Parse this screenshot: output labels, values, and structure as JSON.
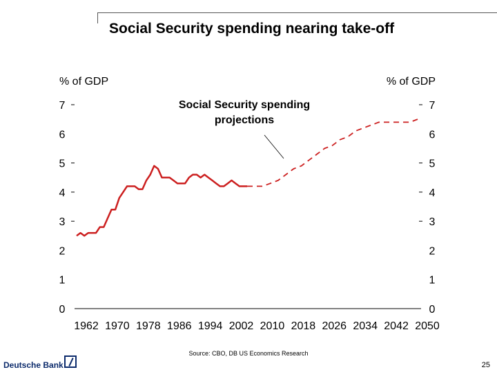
{
  "slide": {
    "title": "Social Security spending nearing take-off",
    "source": "Source: CBO, DB US Economics Research",
    "logo_text": "Deutsche Bank",
    "page_number": "25"
  },
  "chart_data": {
    "type": "line",
    "title": "",
    "ylabel_left": "% of GDP",
    "ylabel_right": "% of GDP",
    "ylim": [
      0,
      7
    ],
    "xlim": [
      1962,
      2050
    ],
    "y_ticks": [
      "0",
      "1",
      "2",
      "3",
      "4",
      "5",
      "6",
      "7"
    ],
    "x_ticks": [
      "1962",
      "1970",
      "1978",
      "1986",
      "1994",
      "2002",
      "2010",
      "2018",
      "2026",
      "2034",
      "2042",
      "2050"
    ],
    "grid": false,
    "color": "#cc1f1f",
    "annotation": "Social Security spending projections",
    "series": [
      {
        "style": "solid",
        "x": [
          1962,
          1963,
          1964,
          1965,
          1966,
          1967,
          1968,
          1969,
          1970,
          1971,
          1972,
          1973,
          1974,
          1975,
          1976,
          1977,
          1978,
          1979,
          1980,
          1981,
          1982,
          1983,
          1984,
          1985,
          1986,
          1987,
          1988,
          1989,
          1990,
          1991,
          1992,
          1993,
          1994,
          1995,
          1996,
          1997,
          1998,
          1999,
          2000,
          2001,
          2002,
          2003,
          2004,
          2005,
          2006
        ],
        "y": [
          2.5,
          2.6,
          2.5,
          2.6,
          2.6,
          2.6,
          2.8,
          2.8,
          3.1,
          3.4,
          3.4,
          3.8,
          4.0,
          4.2,
          4.2,
          4.2,
          4.1,
          4.1,
          4.4,
          4.6,
          4.9,
          4.8,
          4.5,
          4.5,
          4.5,
          4.4,
          4.3,
          4.3,
          4.3,
          4.5,
          4.6,
          4.6,
          4.5,
          4.6,
          4.5,
          4.4,
          4.3,
          4.2,
          4.2,
          4.3,
          4.4,
          4.3,
          4.2,
          4.2,
          4.2
        ]
      },
      {
        "style": "dashed",
        "x": [
          2006,
          2008,
          2010,
          2012,
          2014,
          2016,
          2018,
          2020,
          2022,
          2024,
          2026,
          2028,
          2030,
          2032,
          2034,
          2036,
          2038,
          2040,
          2042,
          2044,
          2046,
          2048,
          2050
        ],
        "y": [
          4.2,
          4.2,
          4.2,
          4.3,
          4.4,
          4.6,
          4.8,
          4.9,
          5.1,
          5.3,
          5.5,
          5.6,
          5.8,
          5.9,
          6.1,
          6.2,
          6.3,
          6.4,
          6.4,
          6.4,
          6.4,
          6.4,
          6.5
        ]
      }
    ]
  }
}
